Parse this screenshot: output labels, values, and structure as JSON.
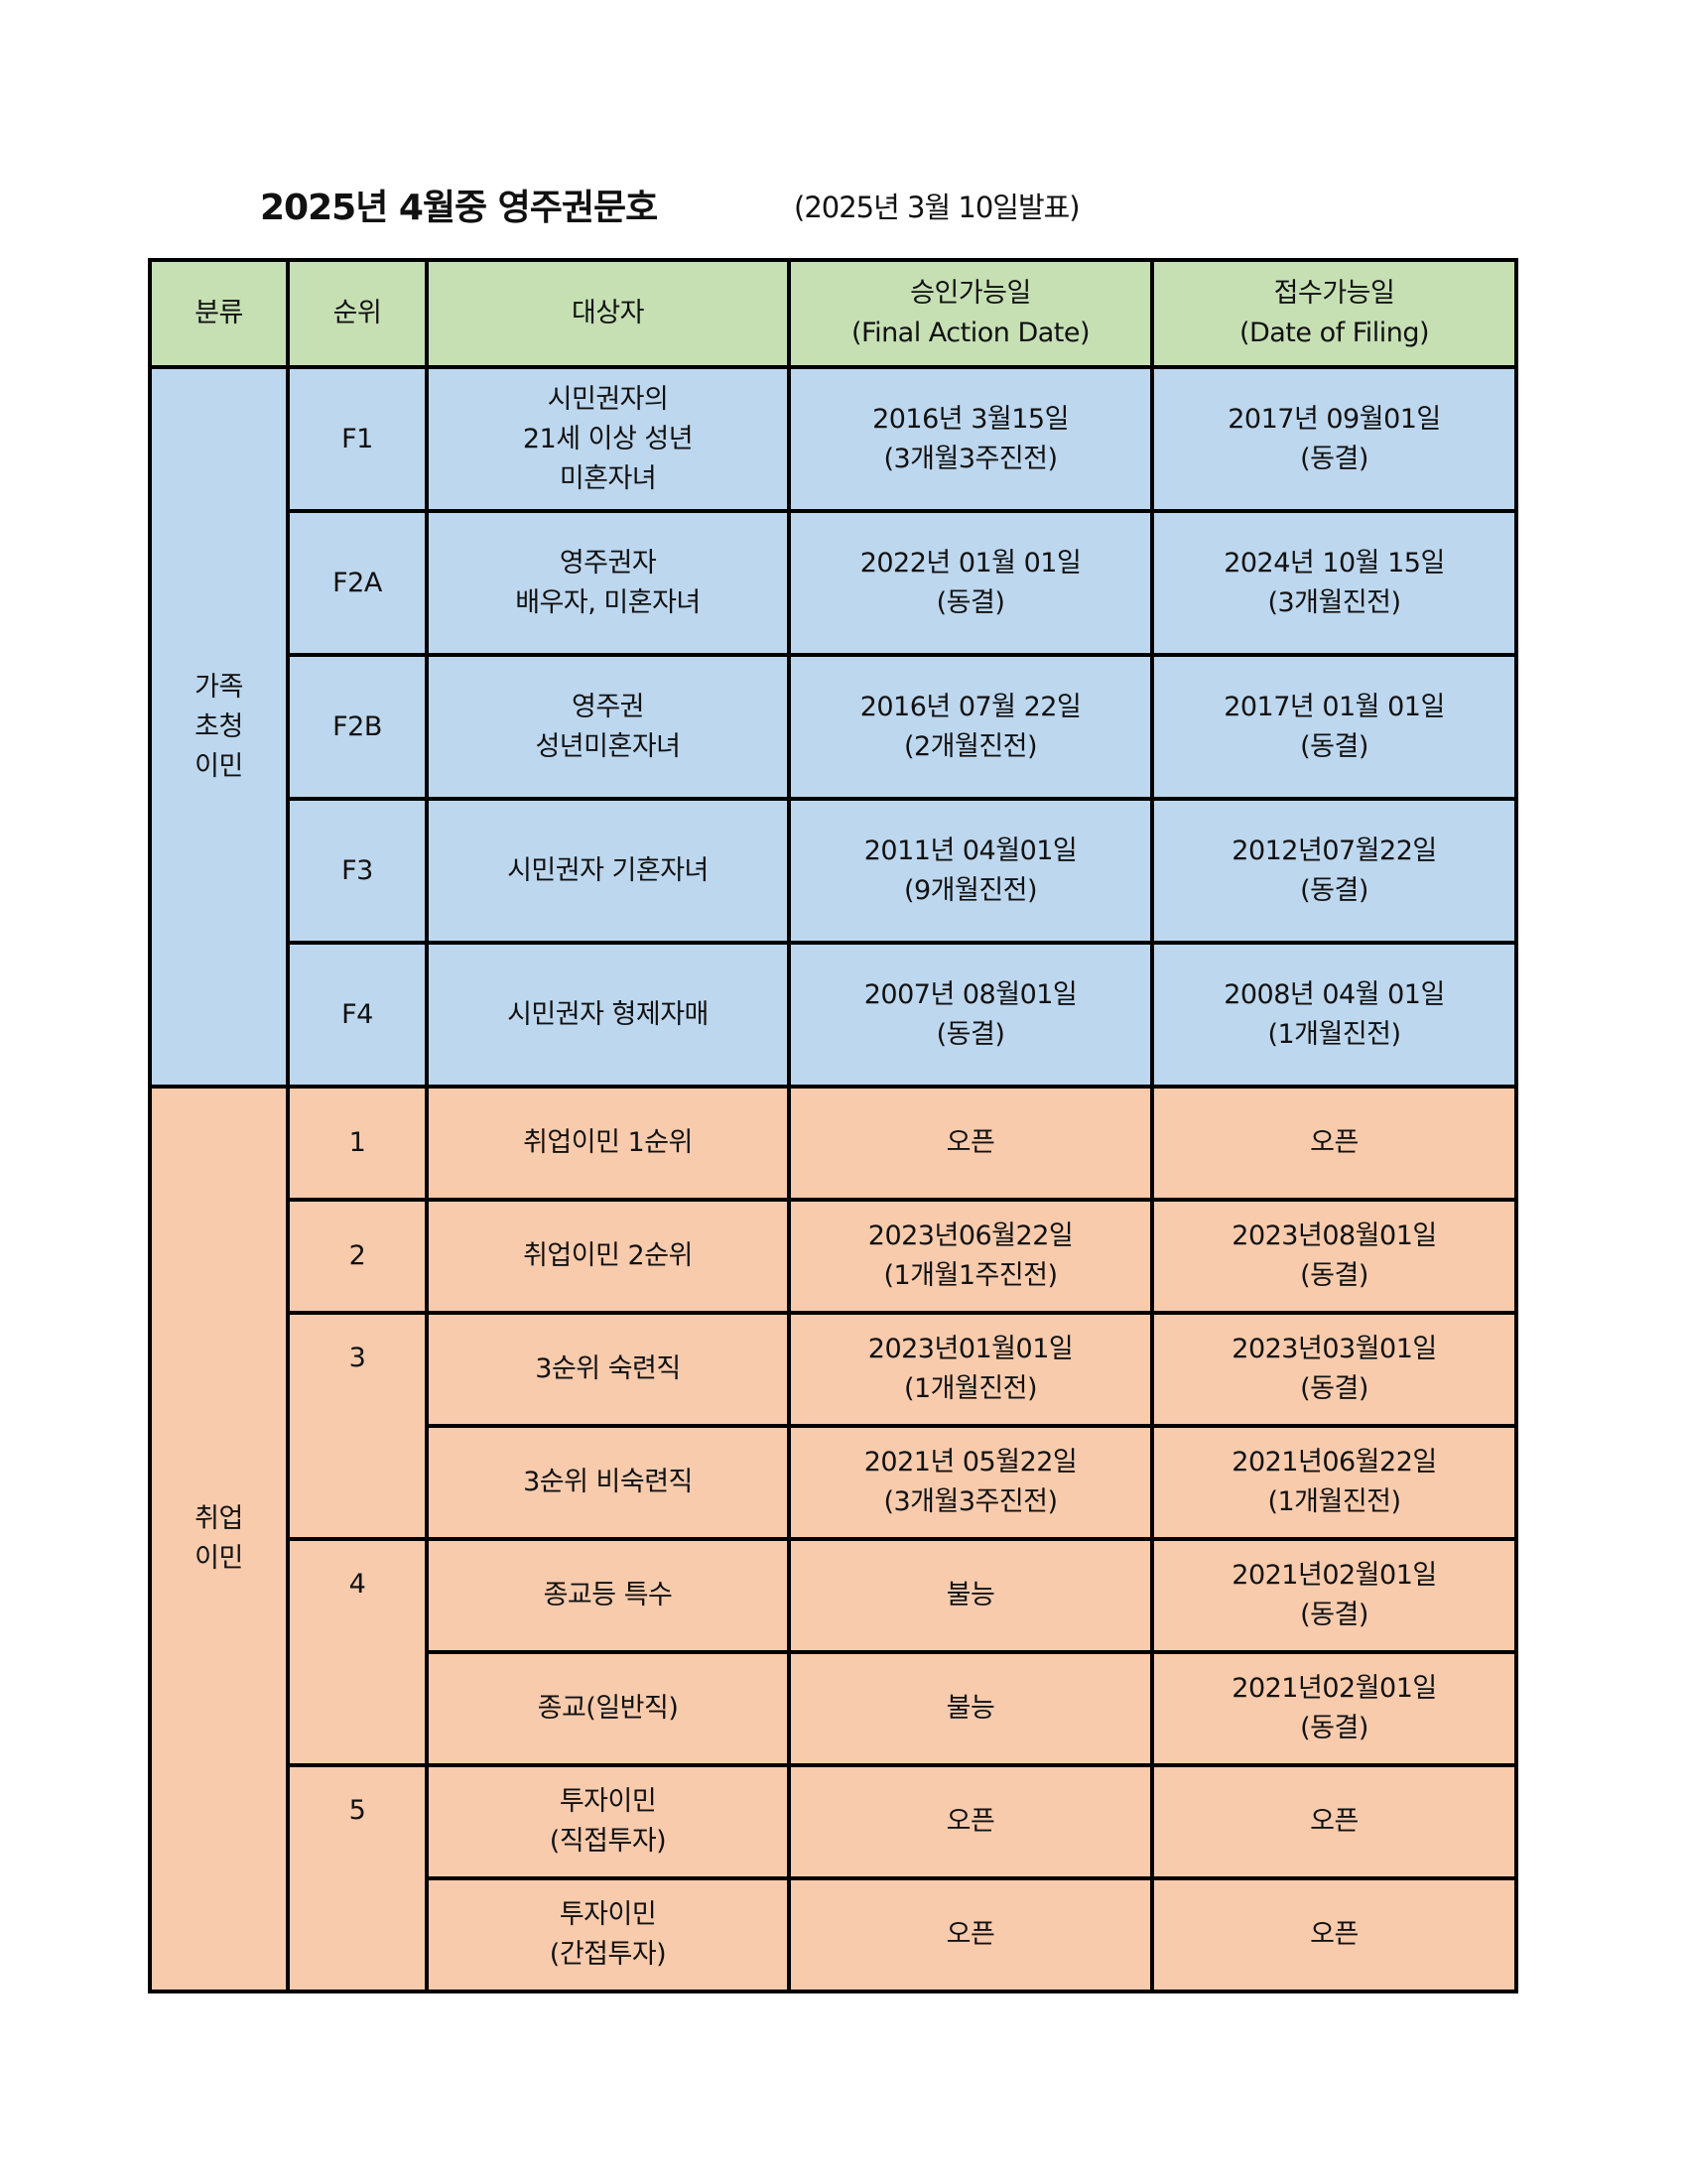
{
  "title": "2025년 4월중 영주권문호",
  "subtitle": "(2025년 3월 10일발표)",
  "colors": {
    "header": "#c6e0b4",
    "family": "#bdd7ee",
    "employment": "#f8cbad"
  },
  "header": {
    "category": "분류",
    "rank": "순위",
    "target": "대상자",
    "final_action": [
      "승인가능일",
      "(Final Action Date)"
    ],
    "filing": [
      "접수가능일",
      "(Date of Filing)"
    ]
  },
  "family": {
    "category": [
      "가족",
      "초청",
      "이민"
    ],
    "rows": [
      {
        "rank": "F1",
        "target": [
          "시민권자의",
          "21세 이상 성년",
          "미혼자녀"
        ],
        "final": [
          "2016년 3월15일",
          "(3개월3주진전)"
        ],
        "filing": [
          "2017년 09월01일",
          "(동결)"
        ]
      },
      {
        "rank": "F2A",
        "target": [
          "영주권자",
          "배우자, 미혼자녀"
        ],
        "final": [
          "2022년 01월 01일",
          "(동결)"
        ],
        "filing": [
          "2024년 10월 15일",
          "(3개월진전)"
        ]
      },
      {
        "rank": "F2B",
        "target": [
          "영주권",
          "성년미혼자녀"
        ],
        "final": [
          "2016년 07월 22일",
          "(2개월진전)"
        ],
        "filing": [
          "2017년 01월 01일",
          "(동결)"
        ]
      },
      {
        "rank": "F3",
        "target": [
          "시민권자 기혼자녀"
        ],
        "final": [
          "2011년 04월01일",
          "(9개월진전)"
        ],
        "filing": [
          "2012년07월22일",
          "(동결)"
        ]
      },
      {
        "rank": "F4",
        "target": [
          "시민권자 형제자매"
        ],
        "final": [
          "2007년 08월01일",
          "(동결)"
        ],
        "filing": [
          "2008년 04월 01일",
          "(1개월진전)"
        ]
      }
    ]
  },
  "employment": {
    "category": [
      "취업",
      "이민"
    ],
    "rows": [
      {
        "rank": "1",
        "target": [
          "취업이민 1순위"
        ],
        "final": [
          "오픈"
        ],
        "filing": [
          "오픈"
        ]
      },
      {
        "rank": "2",
        "target": [
          "취업이민 2순위"
        ],
        "final": [
          "2023년06월22일",
          "(1개월1주진전)"
        ],
        "filing": [
          "2023년08월01일",
          "(동결)"
        ]
      },
      {
        "rank": "3",
        "target": [
          "3순위 숙련직"
        ],
        "final": [
          "2023년01월01일",
          "(1개월진전)"
        ],
        "filing": [
          "2023년03월01일",
          "(동결)"
        ]
      },
      {
        "rank": "",
        "target": [
          "3순위 비숙련직"
        ],
        "final": [
          "2021년 05월22일",
          "(3개월3주진전)"
        ],
        "filing": [
          "2021년06월22일",
          "(1개월진전)"
        ]
      },
      {
        "rank": "4",
        "target": [
          "종교등 특수"
        ],
        "final": [
          "불능"
        ],
        "filing": [
          "2021년02월01일",
          "(동결)"
        ]
      },
      {
        "rank": "",
        "target": [
          "종교(일반직)"
        ],
        "final": [
          "불능"
        ],
        "filing": [
          "2021년02월01일",
          "(동결)"
        ]
      },
      {
        "rank": "5",
        "target": [
          "투자이민",
          "(직접투자)"
        ],
        "final": [
          "오픈"
        ],
        "filing": [
          "오픈"
        ]
      },
      {
        "rank": "",
        "target": [
          "투자이민",
          "(간접투자)"
        ],
        "final": [
          "오픈"
        ],
        "filing": [
          "오픈"
        ]
      }
    ]
  }
}
